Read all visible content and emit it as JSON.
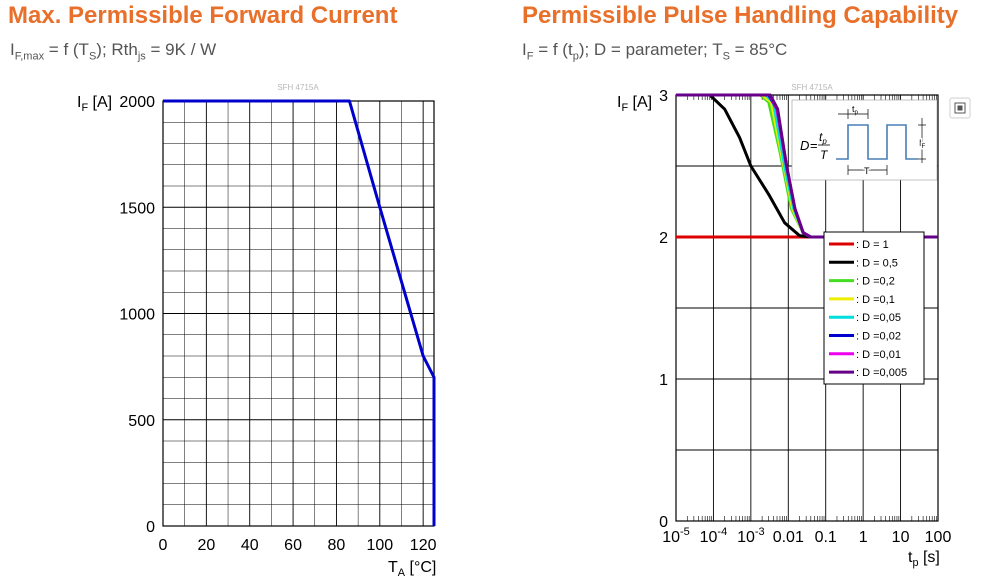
{
  "left": {
    "title": "Max. Permissible Forward Current",
    "subtitle": {
      "p1": "I",
      "s1": "F,max",
      "p2": " = f (T",
      "s2": "S",
      "p3": "); Rth",
      "s3": "js",
      "p4": " = 9K / W"
    }
  },
  "right": {
    "title": "Permissible Pulse Handling Capability",
    "subtitle": {
      "p1": "I",
      "s1": "F",
      "p2": " = f (t",
      "s2": "p",
      "p3": "); D = parameter; T",
      "s3": "S",
      "p4": " = 85°C"
    }
  },
  "chart_data": [
    {
      "type": "line",
      "watermark": "SFH 4715A",
      "ylabel": {
        "main": "I",
        "sub": "F",
        "unit": " [A]"
      },
      "xlabel": {
        "main": "T",
        "sub": "A",
        "unit": " [°C]"
      },
      "xlim": [
        0,
        125
      ],
      "ylim": [
        0,
        2000
      ],
      "xticks": [
        0,
        20,
        40,
        60,
        80,
        100,
        120
      ],
      "yticks": [
        0,
        500,
        1000,
        1500,
        2000
      ],
      "series": [
        {
          "color": "#0000cc",
          "x": [
            0,
            86,
            100,
            120,
            125,
            125
          ],
          "y": [
            2000,
            2000,
            1500,
            800,
            700,
            0
          ]
        }
      ]
    },
    {
      "type": "line",
      "watermark": "SFH 4715A",
      "ylabel": {
        "main": "I",
        "sub": "F",
        "unit": " [A]"
      },
      "xlabel": {
        "main": "t",
        "sub": "p",
        "unit": " [s]"
      },
      "xscale": "log",
      "xlim": [
        1e-05,
        100
      ],
      "ylim": [
        0,
        3
      ],
      "xticks": [
        {
          "m": "10",
          "e": "-5"
        },
        {
          "m": "10",
          "e": "-4"
        },
        {
          "m": "10",
          "e": "-3"
        },
        {
          "m": "0.01"
        },
        {
          "m": "0.1"
        },
        {
          "m": "1"
        },
        {
          "m": "10"
        },
        {
          "m": "100"
        }
      ],
      "yticks": [
        0,
        1,
        2,
        3
      ],
      "legend_position": "right",
      "series": [
        {
          "name": ": D = 1",
          "color": "#dd0000",
          "x": [
            1e-05,
            100
          ],
          "y": [
            2,
            2
          ]
        },
        {
          "name": ": D = 0,5",
          "color": "#000000",
          "x": [
            1e-05,
            8e-05,
            0.0002,
            0.0005,
            0.001,
            0.003,
            0.008,
            0.02,
            0.04,
            100
          ],
          "y": [
            3,
            3,
            2.9,
            2.7,
            2.5,
            2.3,
            2.1,
            2.01,
            2,
            2
          ]
        },
        {
          "name": ": D =0,2",
          "color": "#44dd22",
          "x": [
            1e-05,
            0.0018,
            0.003,
            0.006,
            0.012,
            0.025,
            0.04,
            100
          ],
          "y": [
            3,
            3,
            2.95,
            2.6,
            2.2,
            2.03,
            2,
            2
          ]
        },
        {
          "name": ": D =0,1",
          "color": "#eeee00",
          "x": [
            1e-05,
            0.002,
            0.0035,
            0.007,
            0.013,
            0.025,
            0.04,
            100
          ],
          "y": [
            3,
            3,
            2.95,
            2.55,
            2.2,
            2.03,
            2,
            2
          ]
        },
        {
          "name": ": D =0,05",
          "color": "#00dddd",
          "x": [
            1e-05,
            0.0025,
            0.004,
            0.008,
            0.014,
            0.025,
            0.04,
            100
          ],
          "y": [
            3,
            3,
            2.95,
            2.5,
            2.2,
            2.03,
            2,
            2
          ]
        },
        {
          "name": ": D =0,02",
          "color": "#0000cc",
          "x": [
            1e-05,
            0.003,
            0.005,
            0.009,
            0.015,
            0.025,
            0.04,
            100
          ],
          "y": [
            3,
            3,
            2.9,
            2.5,
            2.2,
            2.03,
            2,
            2
          ]
        },
        {
          "name": ": D =0,01",
          "color": "#ee00ee",
          "x": [
            1e-05,
            0.0032,
            0.005,
            0.009,
            0.015,
            0.025,
            0.04,
            100
          ],
          "y": [
            3,
            3,
            2.9,
            2.5,
            2.2,
            2.03,
            2,
            2
          ]
        },
        {
          "name": ": D =0,005",
          "color": "#660088",
          "x": [
            1e-05,
            0.0033,
            0.0052,
            0.009,
            0.015,
            0.025,
            0.04,
            100
          ],
          "y": [
            3,
            3,
            2.9,
            2.5,
            2.2,
            2.03,
            2,
            2
          ]
        }
      ],
      "inset": {
        "formula_d": "D",
        "formula_eq": "=",
        "num": "t",
        "num_sub": "p",
        "den": "T",
        "tp": "t",
        "tp_sub": "p",
        "period": "T",
        "iF": "I",
        "iF_sub": "F"
      }
    }
  ]
}
